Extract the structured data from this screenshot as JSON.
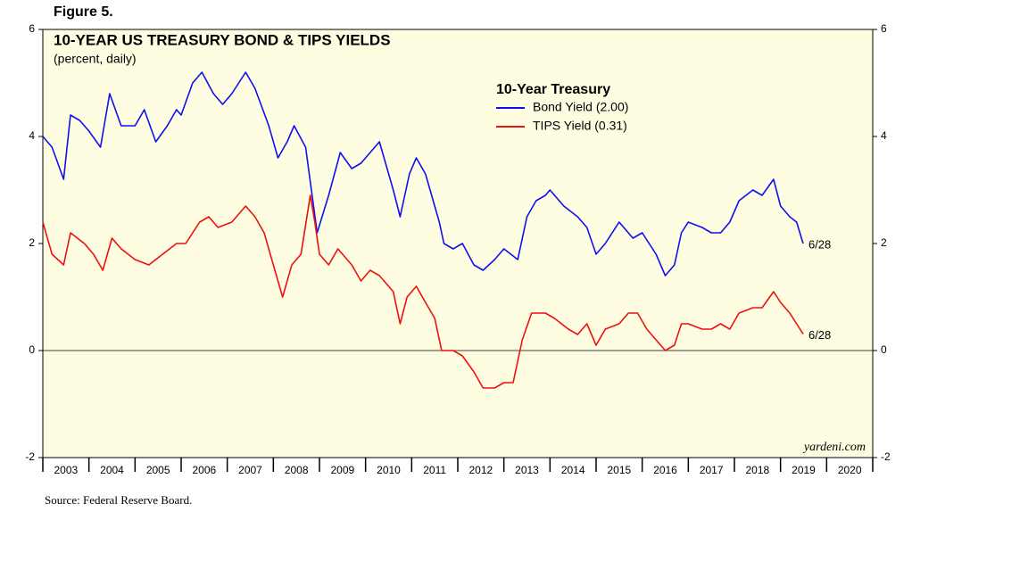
{
  "figure_label": "Figure 5.",
  "source": "Source: Federal Reserve Board.",
  "chart_data": {
    "type": "line",
    "title": "10-YEAR US TREASURY BOND & TIPS YIELDS",
    "subtitle": "(percent, daily)",
    "legend_title": "10-Year Treasury",
    "watermark": "yardeni.com",
    "xlim": [
      2003,
      2021
    ],
    "xticks": [
      2003,
      2004,
      2005,
      2006,
      2007,
      2008,
      2009,
      2010,
      2011,
      2012,
      2013,
      2014,
      2015,
      2016,
      2017,
      2018,
      2019,
      2020
    ],
    "ylim": [
      -2,
      6
    ],
    "yticks": [
      -2,
      0,
      2,
      4,
      6
    ],
    "reference_line": 0,
    "background": "#fffde1",
    "series": [
      {
        "name": "Bond Yield (2.00)",
        "color": "#1010ee",
        "end_label": "6/28",
        "x": [
          2003.0,
          2003.2,
          2003.45,
          2003.6,
          2003.8,
          2004.0,
          2004.25,
          2004.45,
          2004.7,
          2005.0,
          2005.2,
          2005.45,
          2005.7,
          2005.9,
          2006.0,
          2006.25,
          2006.45,
          2006.7,
          2006.9,
          2007.1,
          2007.4,
          2007.6,
          2007.9,
          2008.1,
          2008.3,
          2008.45,
          2008.7,
          2008.95,
          2009.2,
          2009.45,
          2009.7,
          2009.9,
          2010.1,
          2010.3,
          2010.6,
          2010.75,
          2010.95,
          2011.1,
          2011.3,
          2011.6,
          2011.7,
          2011.9,
          2012.1,
          2012.35,
          2012.55,
          2012.8,
          2013.0,
          2013.3,
          2013.5,
          2013.7,
          2013.9,
          2014.0,
          2014.3,
          2014.6,
          2014.8,
          2015.0,
          2015.2,
          2015.5,
          2015.8,
          2016.0,
          2016.3,
          2016.5,
          2016.7,
          2016.85,
          2017.0,
          2017.3,
          2017.5,
          2017.7,
          2017.9,
          2018.1,
          2018.4,
          2018.6,
          2018.85,
          2019.0,
          2019.2,
          2019.35,
          2019.49
        ],
        "values": [
          4.0,
          3.8,
          3.2,
          4.4,
          4.3,
          4.1,
          3.8,
          4.8,
          4.2,
          4.2,
          4.5,
          3.9,
          4.2,
          4.5,
          4.4,
          5.0,
          5.2,
          4.8,
          4.6,
          4.8,
          5.2,
          4.9,
          4.2,
          3.6,
          3.9,
          4.2,
          3.8,
          2.2,
          2.9,
          3.7,
          3.4,
          3.5,
          3.7,
          3.9,
          3.0,
          2.5,
          3.3,
          3.6,
          3.3,
          2.4,
          2.0,
          1.9,
          2.0,
          1.6,
          1.5,
          1.7,
          1.9,
          1.7,
          2.5,
          2.8,
          2.9,
          3.0,
          2.7,
          2.5,
          2.3,
          1.8,
          2.0,
          2.4,
          2.1,
          2.2,
          1.8,
          1.4,
          1.6,
          2.2,
          2.4,
          2.3,
          2.2,
          2.2,
          2.4,
          2.8,
          3.0,
          2.9,
          3.2,
          2.7,
          2.5,
          2.4,
          2.0
        ]
      },
      {
        "name": "TIPS Yield (0.31)",
        "color": "#ee1010",
        "end_label": "6/28",
        "x": [
          2003.0,
          2003.2,
          2003.45,
          2003.6,
          2003.9,
          2004.1,
          2004.3,
          2004.5,
          2004.7,
          2005.0,
          2005.3,
          2005.6,
          2005.9,
          2006.1,
          2006.4,
          2006.6,
          2006.8,
          2007.1,
          2007.4,
          2007.6,
          2007.8,
          2008.0,
          2008.2,
          2008.4,
          2008.6,
          2008.8,
          2008.9,
          2009.0,
          2009.2,
          2009.4,
          2009.7,
          2009.9,
          2010.1,
          2010.3,
          2010.6,
          2010.75,
          2010.9,
          2011.1,
          2011.3,
          2011.5,
          2011.65,
          2011.9,
          2012.1,
          2012.35,
          2012.55,
          2012.8,
          2013.0,
          2013.2,
          2013.4,
          2013.6,
          2013.9,
          2014.1,
          2014.4,
          2014.6,
          2014.8,
          2015.0,
          2015.2,
          2015.5,
          2015.7,
          2015.9,
          2016.1,
          2016.3,
          2016.5,
          2016.7,
          2016.85,
          2017.0,
          2017.3,
          2017.5,
          2017.7,
          2017.9,
          2018.1,
          2018.4,
          2018.6,
          2018.85,
          2019.0,
          2019.2,
          2019.35,
          2019.49
        ],
        "values": [
          2.4,
          1.8,
          1.6,
          2.2,
          2.0,
          1.8,
          1.5,
          2.1,
          1.9,
          1.7,
          1.6,
          1.8,
          2.0,
          2.0,
          2.4,
          2.5,
          2.3,
          2.4,
          2.7,
          2.5,
          2.2,
          1.6,
          1.0,
          1.6,
          1.8,
          2.9,
          2.4,
          1.8,
          1.6,
          1.9,
          1.6,
          1.3,
          1.5,
          1.4,
          1.1,
          0.5,
          1.0,
          1.2,
          0.9,
          0.6,
          0.0,
          0.0,
          -0.1,
          -0.4,
          -0.7,
          -0.7,
          -0.6,
          -0.6,
          0.2,
          0.7,
          0.7,
          0.6,
          0.4,
          0.3,
          0.5,
          0.1,
          0.4,
          0.5,
          0.7,
          0.7,
          0.4,
          0.2,
          0.0,
          0.1,
          0.5,
          0.5,
          0.4,
          0.4,
          0.5,
          0.4,
          0.7,
          0.8,
          0.8,
          1.1,
          0.9,
          0.7,
          0.5,
          0.31
        ]
      }
    ]
  }
}
